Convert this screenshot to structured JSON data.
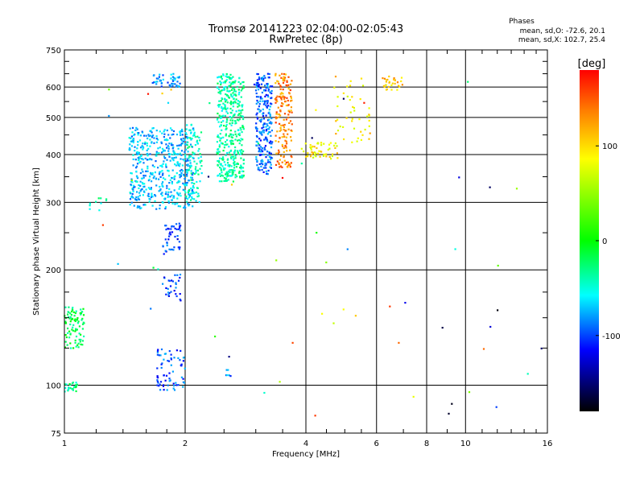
{
  "chart_data": {
    "type": "scatter",
    "title": "Tromsø 20141223 02:04:00-02:05:43",
    "subtitle": "RwPretec (8p)",
    "xlabel": "Frequency [MHz]",
    "ylabel": "Stationary phase Virtual Height [km]",
    "x_scale": "log",
    "y_scale": "log",
    "xlim": [
      1,
      16
    ],
    "ylim": [
      75,
      750
    ],
    "x_ticks": [
      1,
      2,
      4,
      6,
      8,
      10,
      16
    ],
    "x_tick_labels": [
      "1",
      "2",
      "4",
      "6",
      "8",
      "10",
      "16"
    ],
    "x_minor_ticks": [
      1.2,
      1.4,
      1.6,
      1.8,
      2.5,
      3,
      3.5,
      4.5,
      5,
      5.5,
      7,
      9,
      11,
      12,
      13,
      14,
      15
    ],
    "y_ticks": [
      75,
      100,
      200,
      300,
      400,
      500,
      600,
      750
    ],
    "y_tick_labels": [
      "75",
      "100",
      "200",
      "300",
      "400",
      "500",
      "600",
      "750"
    ],
    "y_minor_ticks": [
      125,
      150,
      175,
      250,
      350,
      450,
      550,
      650,
      700
    ],
    "grid": true,
    "phase_info": {
      "title": "Phases",
      "line_o": "mean, sd,O: -72.6, 20.1",
      "line_x": "mean, sd,X: 102.7, 25.4"
    },
    "colorbar": {
      "label": "[deg]",
      "range": [
        -180,
        180
      ],
      "ticks": [
        100,
        0,
        -100
      ],
      "tick_labels": [
        "100",
        "0",
        "-100"
      ]
    },
    "series": [
      {
        "x": [
          1.0,
          1.12
        ],
        "y": [
          125,
          160
        ],
        "phase_mean": -20,
        "count": 90
      },
      {
        "x": [
          1.0,
          1.08
        ],
        "y": [
          96,
          102
        ],
        "phase_mean": -30,
        "count": 25
      },
      {
        "x": [
          1.13,
          1.28
        ],
        "y": [
          285,
          315
        ],
        "phase_mean": -45,
        "count": 10
      },
      {
        "x": [
          1.45,
          2.1
        ],
        "y": [
          288,
          470
        ],
        "phase_mean": -75,
        "count": 520
      },
      {
        "x": [
          1.65,
          1.95
        ],
        "y": [
          600,
          650
        ],
        "phase_mean": -85,
        "count": 45
      },
      {
        "x": [
          2.0,
          2.2
        ],
        "y": [
          300,
          480
        ],
        "phase_mean": -45,
        "count": 90
      },
      {
        "x": [
          2.4,
          2.8
        ],
        "y": [
          340,
          650
        ],
        "phase_mean": -40,
        "count": 420
      },
      {
        "x": [
          3.0,
          3.3
        ],
        "y": [
          355,
          650
        ],
        "phase_mean": -95,
        "count": 240
      },
      {
        "x": [
          3.35,
          3.7
        ],
        "y": [
          370,
          650
        ],
        "phase_mean": 140,
        "count": 170
      },
      {
        "x": [
          3.9,
          4.8
        ],
        "y": [
          390,
          430
        ],
        "phase_mean": 100,
        "count": 55
      },
      {
        "x": [
          4.7,
          5.8
        ],
        "y": [
          430,
          640
        ],
        "phase_mean": 105,
        "count": 45
      },
      {
        "x": [
          6.2,
          7.0
        ],
        "y": [
          590,
          640
        ],
        "phase_mean": 115,
        "count": 30
      },
      {
        "x": [
          1.75,
          1.95
        ],
        "y": [
          220,
          265
        ],
        "phase_mean": -105,
        "count": 45
      },
      {
        "x": [
          1.75,
          1.95
        ],
        "y": [
          165,
          195
        ],
        "phase_mean": -105,
        "count": 30
      },
      {
        "x": [
          1.7,
          2.0
        ],
        "y": [
          97,
          125
        ],
        "phase_mean": -100,
        "count": 70
      },
      {
        "x": [
          2.5,
          2.6
        ],
        "y": [
          105,
          110
        ],
        "phase_mean": -90,
        "count": 6
      },
      {
        "x": [
          1.2,
          16
        ],
        "y": [
          80,
          630
        ],
        "phase_mean": 60,
        "count": 60
      }
    ]
  }
}
